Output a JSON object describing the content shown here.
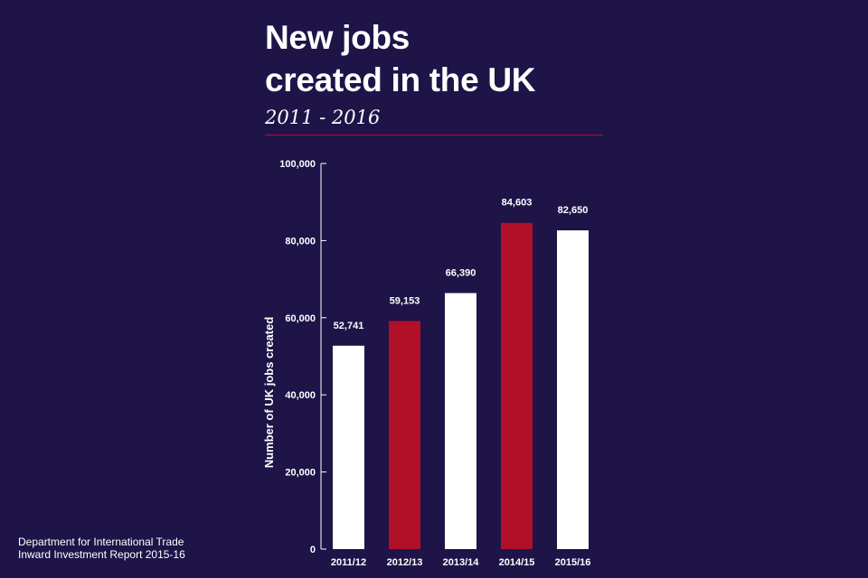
{
  "header": {
    "title_line1": "New jobs",
    "title_line2": "created in the UK",
    "subtitle": "2011 - 2016"
  },
  "footer": {
    "source_line1": "Department for International Trade",
    "source_line2": "Inward Investment Report 2015-16"
  },
  "colors": {
    "background": "#1e1448",
    "bar_white": "#ffffff",
    "bar_red": "#b01028",
    "rule": "#a8142a",
    "text": "#ffffff"
  },
  "chart_data": {
    "type": "bar",
    "title": "New jobs created in the UK",
    "subtitle": "2011 - 2016",
    "xlabel": "",
    "ylabel": "Number of UK jobs created",
    "categories": [
      "2011/12",
      "2012/13",
      "2013/14",
      "2014/15",
      "2015/16"
    ],
    "values": [
      52741,
      59153,
      66390,
      84603,
      82650
    ],
    "value_labels": [
      "52,741",
      "59,153",
      "66,390",
      "84,603",
      "82,650"
    ],
    "bar_colors": [
      "#ffffff",
      "#b01028",
      "#ffffff",
      "#b01028",
      "#ffffff"
    ],
    "ylim": [
      0,
      100000
    ],
    "yticks": [
      0,
      20000,
      40000,
      60000,
      80000,
      100000
    ],
    "ytick_labels": [
      "0",
      "20,000",
      "40,000",
      "60,000",
      "80,000",
      "100,000"
    ],
    "grid": false,
    "legend": "none"
  }
}
